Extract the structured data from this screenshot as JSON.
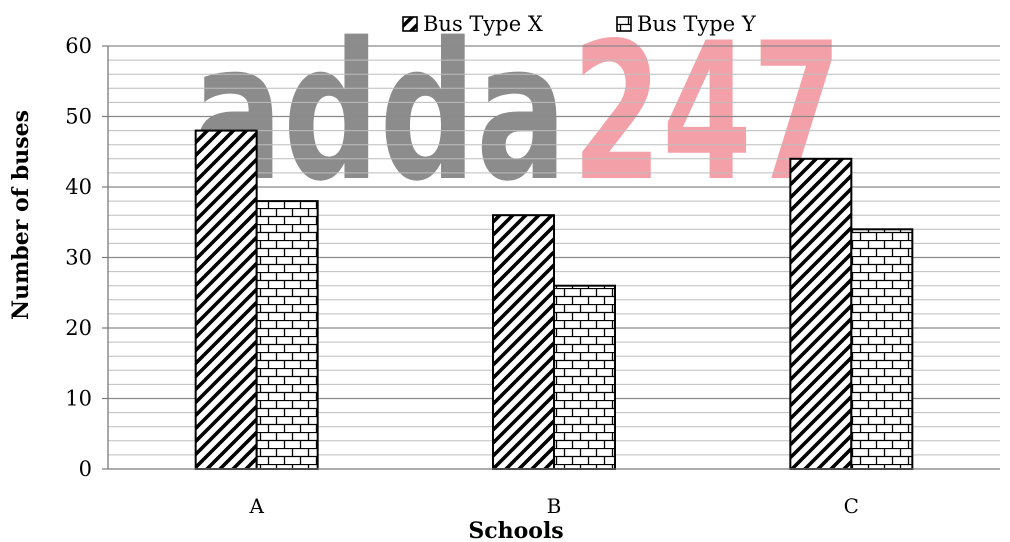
{
  "watermark": {
    "left_text": "adda",
    "right_text": "247",
    "left_color": "#8c8c8c",
    "right_color": "#f4a0a8"
  },
  "chart_data": {
    "type": "bar",
    "categories": [
      "A",
      "B",
      "C"
    ],
    "series": [
      {
        "name": "Bus Type X",
        "values": [
          48,
          36,
          44
        ],
        "pattern": "diagonal-hatch"
      },
      {
        "name": "Bus Type Y",
        "values": [
          38,
          26,
          34
        ],
        "pattern": "brick"
      }
    ],
    "xlabel": "Schools",
    "ylabel": "Number of buses",
    "ylim": [
      0,
      60
    ],
    "yticks": [
      0,
      10,
      20,
      30,
      40,
      50,
      60
    ],
    "minor_gridlines_per_major": 5,
    "grid": true,
    "legend_position": "top"
  }
}
